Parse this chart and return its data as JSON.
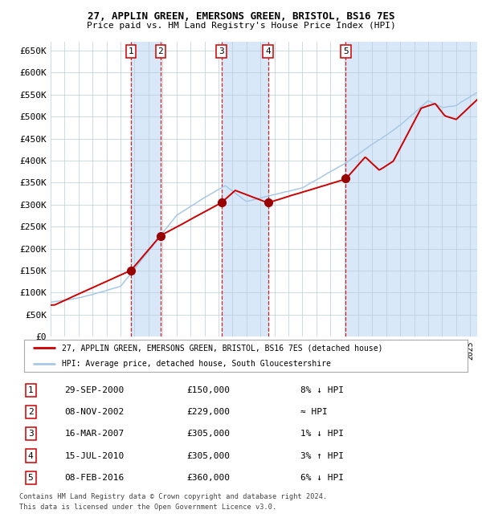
{
  "title1": "27, APPLIN GREEN, EMERSONS GREEN, BRISTOL, BS16 7ES",
  "title2": "Price paid vs. HM Land Registry's House Price Index (HPI)",
  "ylim": [
    0,
    670000
  ],
  "yticks": [
    0,
    50000,
    100000,
    150000,
    200000,
    250000,
    300000,
    350000,
    400000,
    450000,
    500000,
    550000,
    600000,
    650000
  ],
  "ytick_labels": [
    "£0",
    "£50K",
    "£100K",
    "£150K",
    "£200K",
    "£250K",
    "£300K",
    "£350K",
    "£400K",
    "£450K",
    "£500K",
    "£550K",
    "£600K",
    "£650K"
  ],
  "hpi_color": "#a8c8e8",
  "price_color": "#cc0000",
  "dot_color": "#990000",
  "vline_color": "#cc0000",
  "shade_color": "#d8e8f8",
  "plot_bg": "#ffffff",
  "grid_color": "#b8ccd8",
  "sale_dates_x": [
    2000.75,
    2002.86,
    2007.21,
    2010.54,
    2016.1
  ],
  "sale_prices_y": [
    150000,
    229000,
    305000,
    305000,
    360000
  ],
  "sale_labels": [
    "1",
    "2",
    "3",
    "4",
    "5"
  ],
  "sale_info": [
    {
      "num": "1",
      "date": "29-SEP-2000",
      "price": "£150,000",
      "hpi": "8% ↓ HPI"
    },
    {
      "num": "2",
      "date": "08-NOV-2002",
      "price": "£229,000",
      "hpi": "≈ HPI"
    },
    {
      "num": "3",
      "date": "16-MAR-2007",
      "price": "£305,000",
      "hpi": "1% ↓ HPI"
    },
    {
      "num": "4",
      "date": "15-JUL-2010",
      "price": "£305,000",
      "hpi": "3% ↑ HPI"
    },
    {
      "num": "5",
      "date": "08-FEB-2016",
      "price": "£360,000",
      "hpi": "6% ↓ HPI"
    }
  ],
  "legend_line1": "27, APPLIN GREEN, EMERSONS GREEN, BRISTOL, BS16 7ES (detached house)",
  "legend_line2": "HPI: Average price, detached house, South Gloucestershire",
  "footer1": "Contains HM Land Registry data © Crown copyright and database right 2024.",
  "footer2": "This data is licensed under the Open Government Licence v3.0.",
  "xlim_start": 1995.0,
  "xlim_end": 2025.5
}
